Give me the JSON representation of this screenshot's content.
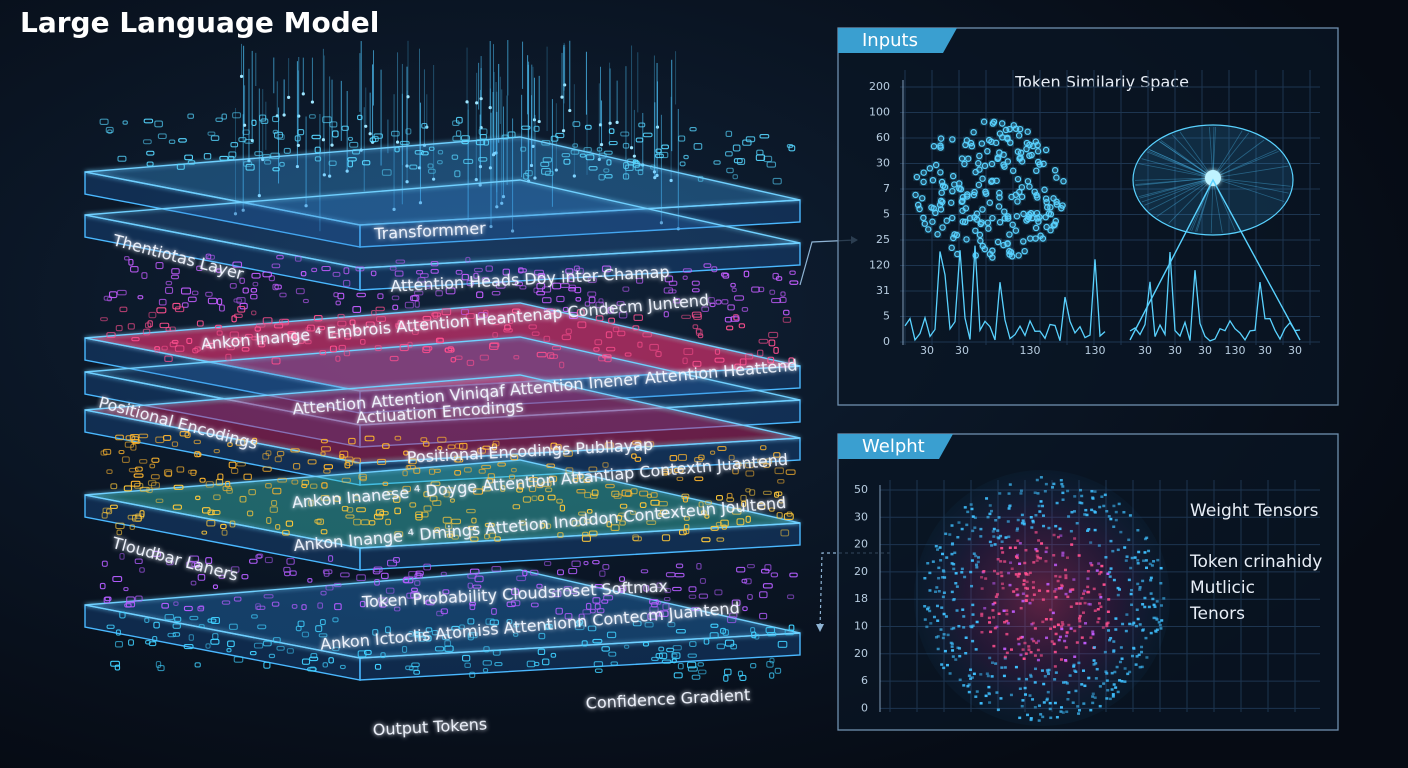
{
  "title": "Large Language Model",
  "layers": [
    "Transformmer",
    "Thentiotas Layer",
    "Attention Heads Doy inter-Chamap",
    "Ankon Inange ⁴ Embrois Attention Heantenap Condecm Juntend",
    "Attention Attention Viniqaf Attention Inener Attention Heattend",
    "Actiuation Encodings",
    "Positional Encodings",
    "Positional Encodings Publlayap",
    "Ankon Inanese ⁴ Doyge Attention Attantiap Contextn Juantend",
    "Ankon Inange ⁴ Dmings Attetion Inoddon Contexteun Joultend",
    "Tloudbar Laners",
    "Token Probability Cloudsroset Softmax",
    "Ankon Ictoclis Atomiss Attentionn Contecm Juantend",
    "Output Tokens",
    "Confidence Gradient"
  ],
  "inputs_panel": {
    "tab": "Inputs",
    "title": "Token Similariy Space",
    "y_labels": [
      "200",
      "100",
      "60",
      "30",
      "7",
      "5",
      "25",
      "120",
      "31",
      "5",
      "0"
    ],
    "x_labels_left": [
      "30",
      "30",
      "130",
      "130"
    ],
    "x_labels_right": [
      "30",
      "30",
      "30",
      "130",
      "30",
      "30"
    ]
  },
  "weight_panel": {
    "tab": "Welpht",
    "y_labels": [
      "50",
      "30",
      "20",
      "20",
      "18",
      "10",
      "20",
      "6",
      "0"
    ],
    "notes": [
      "Weight Tensors",
      "Token ᴄrinahidy",
      "Mutlicic",
      "Tenors"
    ]
  }
}
